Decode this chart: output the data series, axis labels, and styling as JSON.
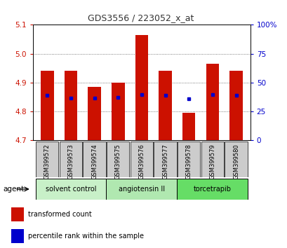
{
  "title": "GDS3556 / 223052_x_at",
  "samples": [
    "GSM399572",
    "GSM399573",
    "GSM399574",
    "GSM399575",
    "GSM399576",
    "GSM399577",
    "GSM399578",
    "GSM399579",
    "GSM399580"
  ],
  "bar_values": [
    4.94,
    4.94,
    4.885,
    4.9,
    5.065,
    4.94,
    4.795,
    4.965,
    4.94
  ],
  "blue_dot_values": [
    4.855,
    4.845,
    4.845,
    4.848,
    4.857,
    4.855,
    4.843,
    4.857,
    4.856
  ],
  "ymin": 4.7,
  "ymax": 5.1,
  "yticks": [
    4.7,
    4.8,
    4.9,
    5.0,
    5.1
  ],
  "right_yticks": [
    0,
    25,
    50,
    75,
    100
  ],
  "right_yticklabels": [
    "0",
    "25",
    "50",
    "75",
    "100%"
  ],
  "bar_color": "#cc1100",
  "dot_color": "#0000cc",
  "bar_width": 0.55,
  "groups": [
    {
      "label": "solvent control",
      "start": 0,
      "end": 3,
      "color": "#c8f0c8"
    },
    {
      "label": "angiotensin II",
      "start": 3,
      "end": 6,
      "color": "#b0e8b0"
    },
    {
      "label": "torcetrapib",
      "start": 6,
      "end": 9,
      "color": "#66dd66"
    }
  ],
  "agent_label": "agent",
  "legend_items": [
    {
      "label": "transformed count",
      "color": "#cc1100"
    },
    {
      "label": "percentile rank within the sample",
      "color": "#0000cc"
    }
  ],
  "title_color": "#333333",
  "left_tick_color": "#cc1100",
  "right_tick_color": "#0000cc",
  "bg_color": "#ffffff",
  "sample_box_color": "#cccccc",
  "grid_color": "#555555"
}
